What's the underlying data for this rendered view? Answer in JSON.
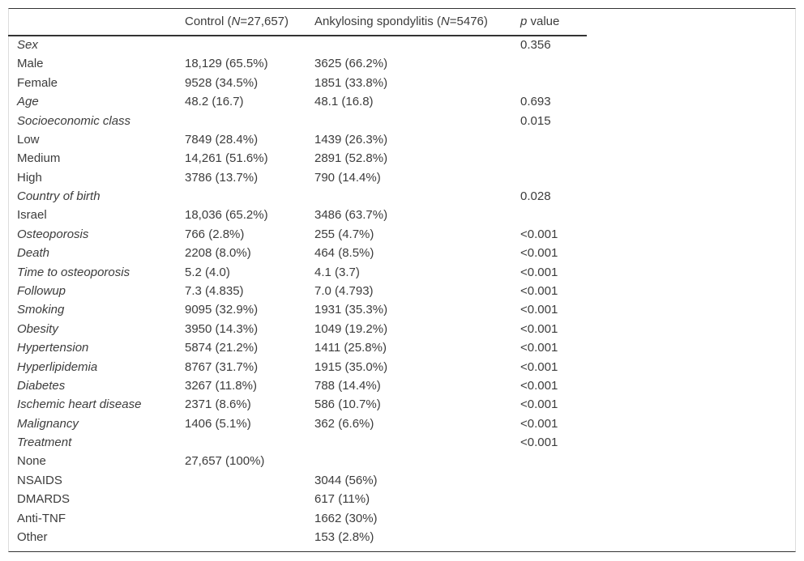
{
  "table": {
    "header": [
      null,
      [
        {
          "text": "Control (",
          "italic": false
        },
        {
          "text": "N",
          "italic": true
        },
        {
          "text": "=27,657)",
          "italic": false
        }
      ],
      [
        {
          "text": "Ankylosing spondylitis (",
          "italic": false
        },
        {
          "text": "N",
          "italic": true
        },
        {
          "text": "=5476)",
          "italic": false
        }
      ],
      [
        {
          "text": "p",
          "italic": true
        },
        {
          "text": " value",
          "italic": false
        }
      ]
    ],
    "rows": [
      {
        "italic": true,
        "cells": [
          "Sex",
          null,
          null,
          "0.356"
        ]
      },
      {
        "italic": false,
        "cells": [
          "Male",
          "18,129 (65.5%)",
          "3625 (66.2%)",
          null
        ]
      },
      {
        "italic": false,
        "cells": [
          "Female",
          "9528 (34.5%)",
          "1851 (33.8%)",
          null
        ]
      },
      {
        "italic": true,
        "cells": [
          "Age",
          "48.2 (16.7)",
          "48.1 (16.8)",
          "0.693"
        ]
      },
      {
        "italic": true,
        "cells": [
          "Socioeconomic class",
          null,
          null,
          "0.015"
        ]
      },
      {
        "italic": false,
        "cells": [
          "Low",
          "7849 (28.4%)",
          "1439 (26.3%)",
          null
        ]
      },
      {
        "italic": false,
        "cells": [
          "Medium",
          "14,261 (51.6%)",
          "2891 (52.8%)",
          null
        ]
      },
      {
        "italic": false,
        "cells": [
          "High",
          "3786 (13.7%)",
          "790 (14.4%)",
          null
        ]
      },
      {
        "italic": true,
        "cells": [
          "Country of birth",
          null,
          null,
          "0.028"
        ]
      },
      {
        "italic": false,
        "cells": [
          "Israel",
          "18,036 (65.2%)",
          "3486 (63.7%)",
          null
        ]
      },
      {
        "italic": true,
        "cells": [
          "Osteoporosis",
          "766 (2.8%)",
          "255 (4.7%)",
          "<0.001"
        ]
      },
      {
        "italic": true,
        "cells": [
          "Death",
          "2208 (8.0%)",
          "464 (8.5%)",
          "<0.001"
        ]
      },
      {
        "italic": true,
        "cells": [
          "Time to osteoporosis",
          "5.2 (4.0)",
          "4.1 (3.7)",
          "<0.001"
        ]
      },
      {
        "italic": true,
        "cells": [
          "Followup",
          "7.3 (4.835)",
          "7.0 (4.793)",
          "<0.001"
        ]
      },
      {
        "italic": true,
        "cells": [
          "Smoking",
          "9095 (32.9%)",
          "1931 (35.3%)",
          "<0.001"
        ]
      },
      {
        "italic": true,
        "cells": [
          "Obesity",
          "3950 (14.3%)",
          "1049 (19.2%)",
          "<0.001"
        ]
      },
      {
        "italic": true,
        "cells": [
          "Hypertension",
          "5874 (21.2%)",
          "1411 (25.8%)",
          "<0.001"
        ]
      },
      {
        "italic": true,
        "cells": [
          "Hyperlipidemia",
          "8767 (31.7%)",
          "1915 (35.0%)",
          "<0.001"
        ]
      },
      {
        "italic": true,
        "cells": [
          "Diabetes",
          "3267 (11.8%)",
          "788 (14.4%)",
          "<0.001"
        ]
      },
      {
        "italic": true,
        "cells": [
          "Ischemic heart disease",
          "2371 (8.6%)",
          "586 (10.7%)",
          "<0.001"
        ]
      },
      {
        "italic": true,
        "cells": [
          "Malignancy",
          "1406 (5.1%)",
          "362 (6.6%)",
          "<0.001"
        ]
      },
      {
        "italic": true,
        "cells": [
          "Treatment",
          null,
          null,
          "<0.001"
        ]
      },
      {
        "italic": false,
        "cells": [
          "None",
          "27,657 (100%)",
          null,
          null
        ]
      },
      {
        "italic": false,
        "cells": [
          "NSAIDS",
          null,
          "3044 (56%)",
          null
        ]
      },
      {
        "italic": false,
        "cells": [
          "DMARDS",
          null,
          "617 (11%)",
          null
        ]
      },
      {
        "italic": false,
        "cells": [
          "Anti-TNF",
          null,
          "1662 (30%)",
          null
        ]
      },
      {
        "italic": false,
        "cells": [
          "Other",
          null,
          "153 (2.8%)",
          null
        ]
      }
    ]
  }
}
